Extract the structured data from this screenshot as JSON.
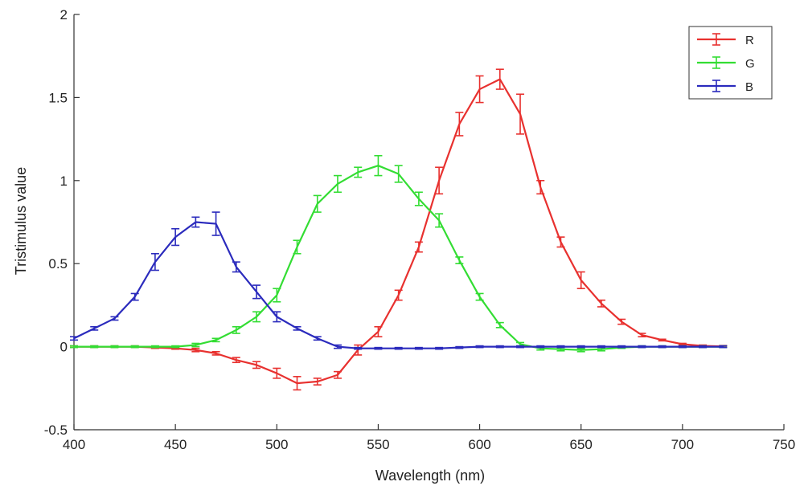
{
  "chart_data": {
    "type": "line",
    "title": "",
    "xlabel": "Wavelength (nm)",
    "ylabel": "Tristimulus value",
    "xlim": [
      400,
      750
    ],
    "ylim": [
      -0.5,
      2
    ],
    "xticks": [
      400,
      450,
      500,
      550,
      600,
      650,
      700,
      750
    ],
    "yticks": [
      -0.5,
      0,
      0.5,
      1,
      1.5,
      2
    ],
    "xtick_labels": [
      "400",
      "450",
      "500",
      "550",
      "600",
      "650",
      "700",
      "750"
    ],
    "ytick_labels": [
      "-0.5",
      "0",
      "0.5",
      "1",
      "1.5",
      "2"
    ],
    "grid": false,
    "legend_position": "top-right",
    "error_bars": true,
    "series": [
      {
        "name": "R",
        "color": "#e8312f",
        "x": [
          400,
          410,
          420,
          430,
          440,
          450,
          460,
          470,
          480,
          490,
          500,
          510,
          520,
          530,
          540,
          550,
          560,
          570,
          580,
          590,
          600,
          610,
          620,
          630,
          640,
          650,
          660,
          670,
          680,
          690,
          700,
          710,
          720
        ],
        "values": [
          0.0,
          0.0,
          0.0,
          0.0,
          -0.005,
          -0.01,
          -0.02,
          -0.04,
          -0.08,
          -0.11,
          -0.16,
          -0.22,
          -0.21,
          -0.17,
          -0.02,
          0.09,
          0.31,
          0.6,
          1.0,
          1.34,
          1.55,
          1.61,
          1.4,
          0.96,
          0.63,
          0.4,
          0.26,
          0.15,
          0.07,
          0.04,
          0.015,
          0.005,
          0.002
        ],
        "errors": [
          0.005,
          0.005,
          0.005,
          0.005,
          0.005,
          0.005,
          0.01,
          0.01,
          0.015,
          0.02,
          0.03,
          0.04,
          0.02,
          0.02,
          0.03,
          0.03,
          0.03,
          0.03,
          0.08,
          0.07,
          0.08,
          0.06,
          0.12,
          0.04,
          0.03,
          0.05,
          0.02,
          0.015,
          0.01,
          0.005,
          0.005,
          0.005,
          0.005
        ]
      },
      {
        "name": "G",
        "color": "#33dd33",
        "x": [
          400,
          410,
          420,
          430,
          440,
          450,
          460,
          470,
          480,
          490,
          500,
          510,
          520,
          530,
          540,
          550,
          560,
          570,
          580,
          590,
          600,
          610,
          620,
          630,
          640,
          650,
          660,
          670,
          680,
          690,
          700,
          710,
          720
        ],
        "values": [
          0.0,
          0.0,
          0.0,
          0.0,
          0.0,
          0.0,
          0.01,
          0.04,
          0.1,
          0.18,
          0.31,
          0.6,
          0.86,
          0.98,
          1.05,
          1.09,
          1.04,
          0.89,
          0.76,
          0.52,
          0.3,
          0.13,
          0.015,
          -0.01,
          -0.015,
          -0.02,
          -0.015,
          -0.005,
          0.0,
          0.0,
          0.0,
          0.0,
          0.0
        ],
        "errors": [
          0.005,
          0.005,
          0.005,
          0.005,
          0.005,
          0.005,
          0.01,
          0.01,
          0.02,
          0.03,
          0.04,
          0.04,
          0.05,
          0.05,
          0.03,
          0.06,
          0.05,
          0.04,
          0.04,
          0.02,
          0.02,
          0.015,
          0.01,
          0.01,
          0.01,
          0.01,
          0.01,
          0.005,
          0.005,
          0.005,
          0.005,
          0.005,
          0.005
        ]
      },
      {
        "name": "B",
        "color": "#2b2bbd",
        "x": [
          400,
          410,
          420,
          430,
          440,
          450,
          460,
          470,
          480,
          490,
          500,
          510,
          520,
          530,
          540,
          550,
          560,
          570,
          580,
          590,
          600,
          610,
          620,
          630,
          640,
          650,
          660,
          670,
          680,
          690,
          700,
          710,
          720
        ],
        "values": [
          0.05,
          0.11,
          0.17,
          0.3,
          0.51,
          0.66,
          0.75,
          0.74,
          0.48,
          0.33,
          0.18,
          0.11,
          0.05,
          0.0,
          -0.01,
          -0.01,
          -0.01,
          -0.01,
          -0.01,
          -0.005,
          0.0,
          0.0,
          0.0,
          0.0,
          0.0,
          0.0,
          0.0,
          0.0,
          0.0,
          0.0,
          0.0,
          0.0,
          0.0
        ],
        "errors": [
          0.01,
          0.01,
          0.01,
          0.02,
          0.05,
          0.05,
          0.03,
          0.07,
          0.03,
          0.04,
          0.03,
          0.01,
          0.01,
          0.01,
          0.005,
          0.005,
          0.005,
          0.005,
          0.005,
          0.005,
          0.005,
          0.005,
          0.005,
          0.005,
          0.005,
          0.005,
          0.005,
          0.005,
          0.005,
          0.005,
          0.005,
          0.005,
          0.005
        ]
      }
    ]
  }
}
